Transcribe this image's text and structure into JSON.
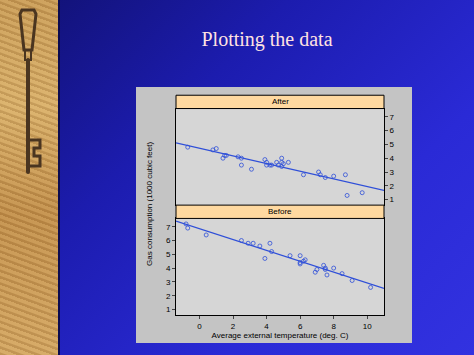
{
  "title": "Plotting the data",
  "chart_data": [
    {
      "type": "scatter",
      "title": "After",
      "tick_labels": "y",
      "xlim": [
        -1.4,
        11
      ],
      "ylim": [
        0.6,
        7.6
      ],
      "yticks": [
        1,
        2,
        3,
        4,
        5,
        6,
        7
      ],
      "series": [
        {
          "type": "scatter",
          "color": "#2f4fd8",
          "marker": "circle-open",
          "x": [
            -0.7,
            0.8,
            1.0,
            1.4,
            1.5,
            1.6,
            2.3,
            2.5,
            2.5,
            3.1,
            3.9,
            4.0,
            4.0,
            4.2,
            4.3,
            4.6,
            4.7,
            4.9,
            4.9,
            4.9,
            5.0,
            5.3,
            6.2,
            7.1,
            7.2,
            7.5,
            8.0,
            8.7,
            8.8,
            9.7
          ],
          "values": [
            4.8,
            4.6,
            4.7,
            4.0,
            4.2,
            4.2,
            4.1,
            4.0,
            3.5,
            3.2,
            3.9,
            3.5,
            3.7,
            3.5,
            3.5,
            3.7,
            3.5,
            3.4,
            3.7,
            4.0,
            3.6,
            3.7,
            2.8,
            3.0,
            2.8,
            2.6,
            2.7,
            2.8,
            1.3,
            1.5
          ]
        },
        {
          "type": "line",
          "color": "#2f4fd8",
          "line_style": "solid",
          "x": [
            -1.4,
            11
          ],
          "values": [
            5.11,
            1.67
          ]
        }
      ]
    },
    {
      "type": "scatter",
      "title": "Before",
      "xlabel": "Average external temperature (deg. C)",
      "ylabel": "Gas consumption (1000 cubic feet)",
      "xlim": [
        -1.4,
        11
      ],
      "xticks": [
        0,
        2,
        4,
        6,
        8,
        10
      ],
      "ylim": [
        0.6,
        7.6
      ],
      "yticks": [
        1,
        2,
        3,
        4,
        5,
        6,
        7
      ],
      "series": [
        {
          "type": "scatter",
          "color": "#2f4fd8",
          "marker": "circle-open",
          "x": [
            -0.8,
            -0.7,
            0.4,
            2.5,
            2.9,
            3.2,
            3.6,
            3.9,
            4.2,
            4.3,
            5.4,
            6.0,
            6.0,
            6.0,
            6.2,
            6.3,
            6.9,
            7.0,
            7.4,
            7.5,
            7.5,
            7.6,
            8.0,
            8.5,
            9.1,
            10.2
          ],
          "values": [
            7.2,
            6.9,
            6.4,
            6.0,
            5.8,
            5.8,
            5.6,
            4.7,
            5.8,
            5.2,
            4.9,
            4.9,
            4.3,
            4.4,
            4.5,
            4.6,
            3.7,
            3.9,
            4.2,
            4.0,
            3.9,
            3.5,
            4.0,
            3.6,
            3.1,
            2.6
          ]
        },
        {
          "type": "line",
          "color": "#2f4fd8",
          "line_style": "solid",
          "x": [
            -1.4,
            11
          ],
          "values": [
            7.4,
            2.53
          ]
        }
      ]
    }
  ]
}
